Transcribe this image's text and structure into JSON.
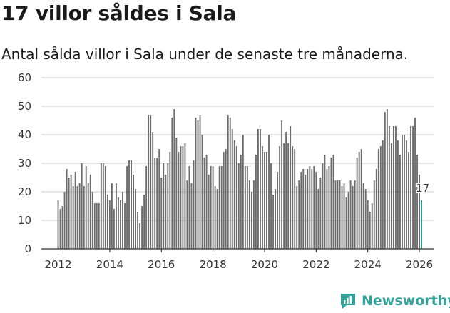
{
  "title": "17 villor såldes i Sala",
  "subtitle": "Antal sålda villor i Sala under de senaste tre månaderna.",
  "brand": {
    "name": "Newsworthy",
    "icon": "newsworthy-logo-icon"
  },
  "colors": {
    "bar": "#6c6c6c",
    "highlight": "#2a9d8f",
    "brand": "#35a29a",
    "grid": "#cccccc"
  },
  "chart_data": {
    "type": "bar",
    "title": "17 villor såldes i Sala",
    "subtitle": "Antal sålda villor i Sala under de senaste tre månaderna.",
    "xlabel": "",
    "ylabel": "",
    "ylim": [
      0,
      60
    ],
    "yticks": [
      0,
      10,
      20,
      30,
      40,
      50,
      60
    ],
    "xticks": [
      2012,
      2014,
      2016,
      2018,
      2020,
      2022,
      2024,
      2026
    ],
    "xlim": [
      2011.35,
      2026.55
    ],
    "grid": true,
    "legend": "none",
    "start": 2012.0,
    "step": 0.08333,
    "values": [
      17,
      14,
      15,
      20,
      28,
      25,
      26,
      22,
      27,
      22,
      23,
      30,
      22,
      29,
      23,
      26,
      20,
      16,
      16,
      16,
      30,
      30,
      29,
      19,
      17,
      23,
      14,
      23,
      18,
      17,
      20,
      16,
      29,
      31,
      31,
      26,
      21,
      13,
      9,
      15,
      19,
      29,
      47,
      47,
      41,
      32,
      32,
      35,
      25,
      30,
      26,
      30,
      34,
      46,
      49,
      39,
      34,
      36,
      36,
      37,
      24,
      29,
      23,
      31,
      46,
      45,
      47,
      40,
      32,
      33,
      26,
      29,
      29,
      22,
      21,
      29,
      29,
      34,
      35,
      47,
      46,
      42,
      38,
      36,
      30,
      33,
      40,
      29,
      29,
      24,
      20,
      24,
      33,
      42,
      42,
      36,
      34,
      34,
      40,
      30,
      19,
      21,
      27,
      36,
      45,
      37,
      41,
      37,
      43,
      36,
      35,
      22,
      24,
      27,
      28,
      26,
      28,
      29,
      28,
      29,
      27,
      21,
      25,
      30,
      33,
      28,
      29,
      32,
      33,
      24,
      24,
      24,
      22,
      23,
      18,
      20,
      24,
      22,
      24,
      32,
      34,
      35,
      23,
      21,
      17,
      13,
      16,
      24,
      28,
      35,
      36,
      38,
      48,
      49,
      43,
      37,
      43,
      43,
      38,
      33,
      40,
      40,
      38,
      34,
      43,
      43,
      46,
      33,
      26,
      17
    ],
    "highlight_last": 1,
    "annotations": [
      {
        "text": "17",
        "x": 2026.0,
        "y": 17
      }
    ]
  }
}
